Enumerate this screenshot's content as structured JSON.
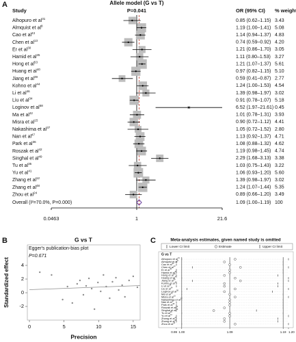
{
  "panel_labels": [
    "A",
    "B",
    "C"
  ],
  "chart_data": [
    {
      "type": "forest",
      "title": "Allele model (G vs T)",
      "p_value_label": "P=0.041",
      "column_headers": [
        "Study",
        "OR (95% CI)",
        "% weight"
      ],
      "log_scale": true,
      "xlim": [
        0.0463,
        21.6
      ],
      "xticks": [
        0.0463,
        1,
        21.6
      ],
      "null_line": 1,
      "square_color": "#bdbdbd",
      "overall_color": "#6a3d9a",
      "reference_line_color": "#c0392b",
      "studies": [
        {
          "name": "Alhopuro et al",
          "ref": "31",
          "or": 0.85,
          "lo": 0.62,
          "hi": 1.15,
          "ci_label": "0.85 (0.62–1.15)",
          "weight": 3.43
        },
        {
          "name": "Almquist et al",
          "ref": "8",
          "or": 1.19,
          "lo": 1.0,
          "hi": 1.41,
          "ci_label": "1.19 (1.00–1.41)",
          "weight": 5.08
        },
        {
          "name": "Cao et al",
          "ref": "43",
          "or": 1.14,
          "lo": 0.94,
          "hi": 1.37,
          "ci_label": "1.14 (0.94–1.37)",
          "weight": 4.83
        },
        {
          "name": "Chen et al",
          "ref": "13",
          "or": 0.74,
          "lo": 0.59,
          "hi": 0.92,
          "ci_label": "0.74 (0.59–0.92)",
          "weight": 4.2,
          "weight_label": "4.20"
        },
        {
          "name": "Er et al",
          "ref": "30",
          "or": 1.21,
          "lo": 0.86,
          "hi": 1.7,
          "ci_label": "1.21 (0.86–1.70)",
          "weight": 3.05
        },
        {
          "name": "Hamid et al",
          "ref": "25",
          "or": 1.11,
          "lo": 0.8,
          "hi": 1.53,
          "ci_label": "1.11 (0.80–1.53)",
          "weight": 3.27
        },
        {
          "name": "Hong et al",
          "ref": "53",
          "or": 1.21,
          "lo": 1.07,
          "hi": 1.37,
          "ci_label": "1.21 (1.07–1.37)",
          "weight": 5.61
        },
        {
          "name": "Huang et al",
          "ref": "40",
          "or": 0.97,
          "lo": 0.82,
          "hi": 1.15,
          "ci_label": "0.97 (0.82–1.15)",
          "weight": 5.1,
          "weight_label": "5.10"
        },
        {
          "name": "Jiang et al",
          "ref": "39",
          "or": 0.59,
          "lo": 0.41,
          "hi": 0.87,
          "ci_label": "0.59 (0.41–0.87)",
          "weight": 2.77
        },
        {
          "name": "Kohno et al",
          "ref": "44",
          "or": 1.24,
          "lo": 1.0,
          "hi": 1.53,
          "ci_label": "1.24 (1.00–1.53)",
          "weight": 4.54
        },
        {
          "name": "Li et al",
          "ref": "46",
          "or": 1.39,
          "lo": 0.98,
          "hi": 1.97,
          "ci_label": "1.39 (0.98–1.97)",
          "weight": 3.02
        },
        {
          "name": "Liu et al",
          "ref": "34",
          "or": 0.91,
          "lo": 0.78,
          "hi": 1.07,
          "ci_label": "0.91 (0.78–1.07)",
          "weight": 5.18
        },
        {
          "name": "Loginov et al",
          "ref": "58",
          "or": 6.52,
          "lo": 1.97,
          "hi": 21.61,
          "ci_label": "6.52 (1.97–21.61)",
          "weight": 0.45
        },
        {
          "name": "Ma et al",
          "ref": "42",
          "or": 1.01,
          "lo": 0.78,
          "hi": 1.31,
          "ci_label": "1.01 (0.78–1.31)",
          "weight": 3.93
        },
        {
          "name": "Misra et al",
          "ref": "15",
          "or": 0.9,
          "lo": 0.72,
          "hi": 1.12,
          "ci_label": "0.90 (0.72–1.12)",
          "weight": 4.41
        },
        {
          "name": "Nakashima et al",
          "ref": "37",
          "or": 1.05,
          "lo": 0.72,
          "hi": 1.52,
          "ci_label": "1.05 (0.72–1.52)",
          "weight": 2.8,
          "weight_label": "2.80"
        },
        {
          "name": "Nan et al",
          "ref": "47",
          "or": 1.13,
          "lo": 0.92,
          "hi": 1.37,
          "ci_label": "1.13 (0.92–1.37)",
          "weight": 4.71
        },
        {
          "name": "Park et al",
          "ref": "36",
          "or": 1.08,
          "lo": 0.88,
          "hi": 1.32,
          "ci_label": "1.08 (0.88–1.32)",
          "weight": 4.62
        },
        {
          "name": "Roszak et al",
          "ref": "42",
          "or": 1.19,
          "lo": 0.98,
          "hi": 1.45,
          "ci_label": "1.19 (0.98–1.45)",
          "weight": 4.74
        },
        {
          "name": "Singhal et al",
          "ref": "49",
          "or": 2.29,
          "lo": 1.68,
          "hi": 3.13,
          "ci_label": "2.29 (1.68–3.13)",
          "weight": 3.38
        },
        {
          "name": "Tu et al",
          "ref": "35",
          "or": 1.03,
          "lo": 0.75,
          "hi": 1.43,
          "ci_label": "1.03 (0.75–1.43)",
          "weight": 3.22
        },
        {
          "name": "Yu et al",
          "ref": "41",
          "or": 1.06,
          "lo": 0.93,
          "hi": 1.2,
          "ci_label": "1.06 (0.93–1.20)",
          "weight": 5.6,
          "weight_label": "5.60"
        },
        {
          "name": "Zhang et al",
          "ref": "12",
          "or": 1.39,
          "lo": 0.98,
          "hi": 1.97,
          "ci_label": "1.39 (0.98–1.97)",
          "weight": 3.02
        },
        {
          "name": "Zhang et al",
          "ref": "48",
          "or": 1.24,
          "lo": 1.07,
          "hi": 1.44,
          "ci_label": "1.24 (1.07–1.44)",
          "weight": 5.35
        },
        {
          "name": "Zhou et al",
          "ref": "24",
          "or": 0.89,
          "lo": 0.66,
          "hi": 1.2,
          "ci_label": "0.89 (0.66–1.20)",
          "weight": 3.49
        }
      ],
      "overall": {
        "name": "Overall (I²=70.0%, P=0.000)",
        "or": 1.09,
        "lo": 1.0,
        "hi": 1.19,
        "ci_label": "1.09 (1.00–1.19)",
        "weight": 100
      }
    },
    {
      "type": "scatter",
      "title": "G vs T",
      "annotation": "Egger's publication-bias plot",
      "p_value_label": "P=0.671",
      "xlabel": "Precision",
      "ylabel": "Standardized effect",
      "xlim": [
        -0.3,
        16
      ],
      "xticks": [
        0,
        5,
        10,
        15
      ],
      "ylim": [
        -4,
        7
      ],
      "yticks": [
        -2,
        0,
        2,
        4
      ],
      "point_color": "#8c8c8c",
      "line_color": "#8c8c8c",
      "points": {
        "x": [
          1.5,
          3.2,
          4.8,
          5.5,
          6.2,
          6.9,
          7.3,
          7.8,
          8.2,
          8.6,
          9.0,
          9.4,
          9.9,
          10.3,
          10.7,
          11.1,
          11.6,
          12.0,
          12.5,
          12.9,
          13.4,
          13.8,
          14.4,
          15.0,
          15.6
        ],
        "y": [
          3.0,
          2.6,
          -1.0,
          0.9,
          -1.5,
          1.3,
          1.8,
          -0.3,
          1.0,
          2.1,
          0.6,
          -2.4,
          1.5,
          0.2,
          2.6,
          0.9,
          -0.8,
          1.6,
          2.2,
          0.4,
          1.1,
          -0.6,
          1.8,
          2.4,
          0.8
        ]
      },
      "fit_line": {
        "x": [
          0,
          16
        ],
        "y": [
          0.45,
          1.05
        ]
      }
    },
    {
      "type": "sensitivity",
      "title": "Meta-analysis estimates, given named study is omitted",
      "ylabel": "G vs T",
      "xlim": [
        0.99,
        1.2
      ],
      "xticks": [
        0.99,
        {
          "value": 1,
          "label": "1.00"
        },
        1.09,
        1.19,
        {
          "value": 1.2,
          "label": "1.20"
        }
      ],
      "vlines": [
        1.0,
        1.09,
        1.19
      ],
      "color": "#333333",
      "series": [
        {
          "name": "Lower CI limit",
          "values": [
            1.0,
            0.99,
            0.99,
            1.02,
            0.99,
            0.99,
            0.99,
            1.0,
            1.02,
            0.99,
            0.99,
            1.01,
            1.0,
            1.0,
            1.0,
            1.0,
            0.99,
            0.99,
            0.99,
            0.99,
            1.0,
            0.99,
            0.99,
            0.99,
            1.0
          ]
        },
        {
          "name": "Estimate",
          "values": [
            1.1,
            1.08,
            1.09,
            1.11,
            1.09,
            1.09,
            1.08,
            1.1,
            1.11,
            1.08,
            1.08,
            1.1,
            1.08,
            1.09,
            1.1,
            1.09,
            1.09,
            1.09,
            1.08,
            1.06,
            1.09,
            1.09,
            1.08,
            1.08,
            1.1
          ]
        },
        {
          "name": "Upper CI limit",
          "values": [
            1.2,
            1.19,
            1.19,
            1.2,
            1.19,
            1.19,
            1.18,
            1.2,
            1.2,
            1.18,
            1.18,
            1.2,
            1.17,
            1.19,
            1.2,
            1.19,
            1.19,
            1.19,
            1.19,
            1.14,
            1.19,
            1.2,
            1.18,
            1.18,
            1.2
          ]
        }
      ]
    }
  ]
}
